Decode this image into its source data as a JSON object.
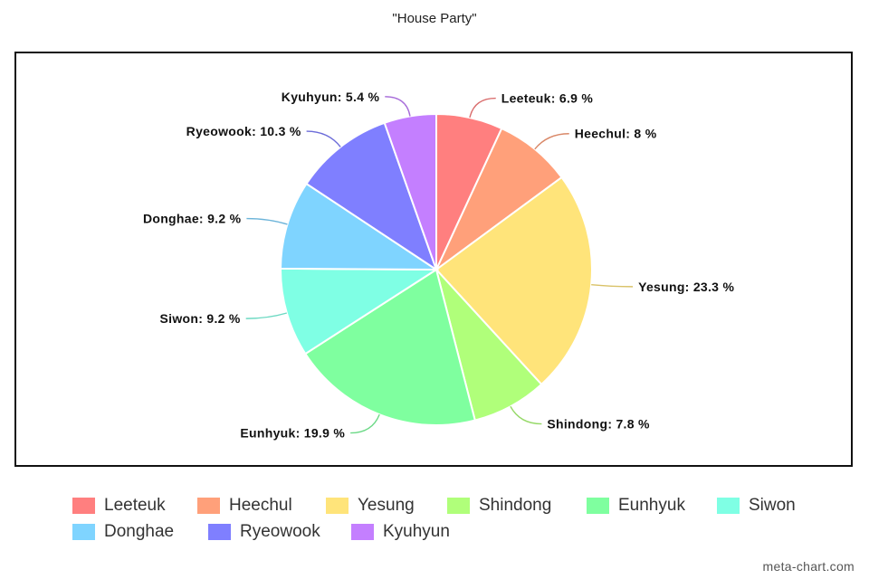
{
  "chart_data": {
    "type": "pie",
    "title": "\"House Party\"",
    "unit": "%",
    "slices": [
      {
        "name": "Leeteuk",
        "value": 6.9,
        "color": "#ff7f7f",
        "label": "Leeteuk: 6.9 %"
      },
      {
        "name": "Heechul",
        "value": 8,
        "color": "#ffa07a",
        "label": "Heechul: 8 %"
      },
      {
        "name": "Yesung",
        "value": 23.3,
        "color": "#ffe47a",
        "label": "Yesung: 23.3 %"
      },
      {
        "name": "Shindong",
        "value": 7.8,
        "color": "#b0ff7a",
        "label": "Shindong: 7.8 %"
      },
      {
        "name": "Eunhyuk",
        "value": 19.9,
        "color": "#7fff9f",
        "label": "Eunhyuk: 19.9 %"
      },
      {
        "name": "Siwon",
        "value": 9.2,
        "color": "#7fffe4",
        "label": "Siwon: 9.2 %"
      },
      {
        "name": "Donghae",
        "value": 9.2,
        "color": "#7fd4ff",
        "label": "Donghae: 9.2 %"
      },
      {
        "name": "Ryeowook",
        "value": 10.3,
        "color": "#7f7fff",
        "label": "Ryeowook: 10.3 %"
      },
      {
        "name": "Kyuhyun",
        "value": 5.4,
        "color": "#c47fff",
        "label": "Kyuhyun: 5.4 %"
      }
    ],
    "legend_position": "bottom"
  },
  "watermark": "meta-chart.com"
}
